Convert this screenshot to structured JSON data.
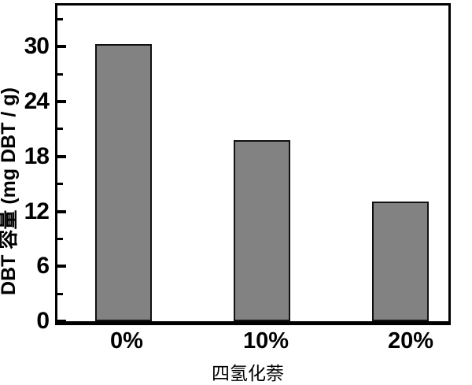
{
  "figure": {
    "background": "#ffffff"
  },
  "chart_data": {
    "type": "bar",
    "title": "",
    "categories": [
      "0%",
      "10%",
      "20%"
    ],
    "values": [
      30.3,
      19.8,
      13.1
    ],
    "xlabel": "四氢化萘",
    "ylabel": "DBT 容量 (mg DBT / g)",
    "ylim": [
      0,
      34.5
    ],
    "yticks_major": [
      0,
      6,
      12,
      18,
      24,
      30
    ],
    "yticks_minor": [
      3,
      9,
      15,
      21,
      27,
      33
    ],
    "grid": false,
    "legend": "none",
    "tick_direction": "in",
    "bar_fill": "#828282",
    "bar_edge": "#111111",
    "axis_color": "#000000",
    "text_color": "#000000"
  }
}
